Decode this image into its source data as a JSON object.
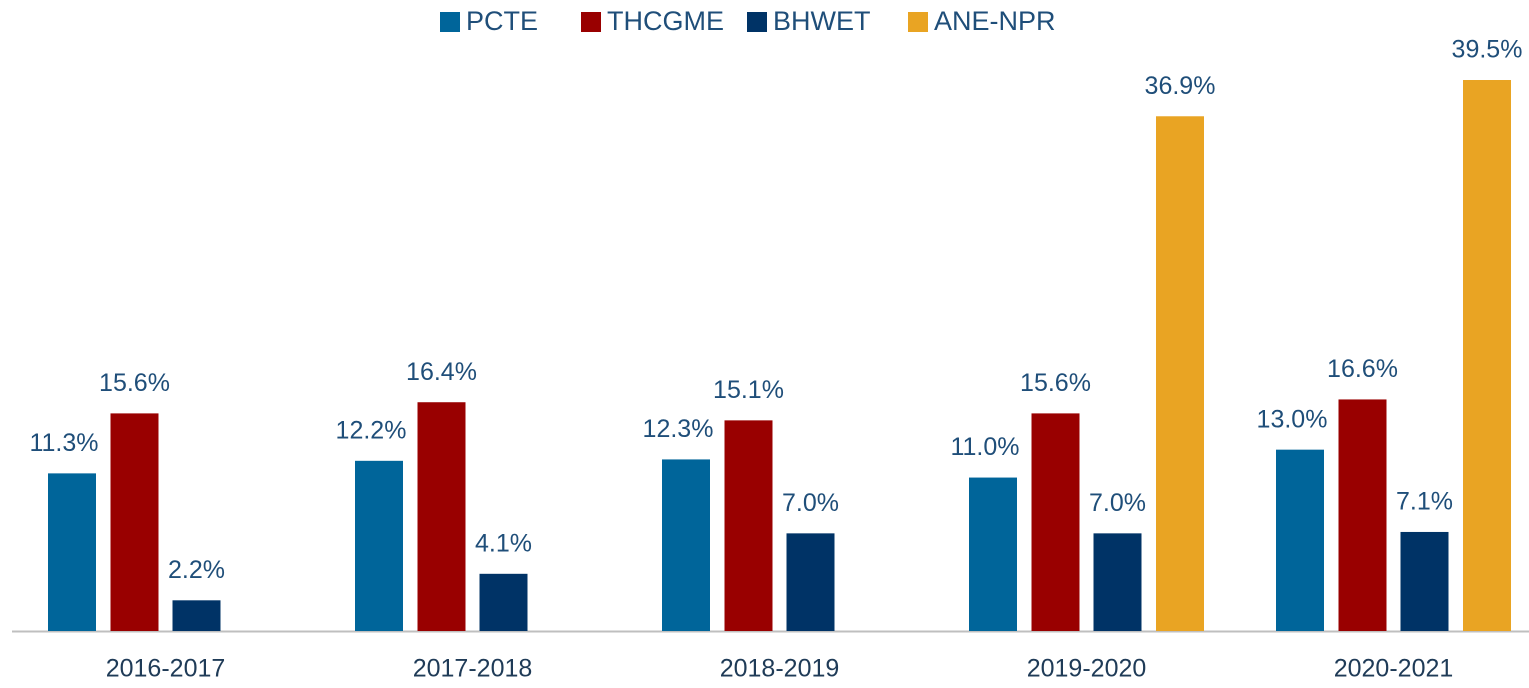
{
  "chart_data": {
    "type": "bar",
    "categories": [
      "2016-2017",
      "2017-2018",
      "2018-2019",
      "2019-2020",
      "2020-2021"
    ],
    "series": [
      {
        "name": "PCTE",
        "color": "#00659a",
        "values": [
          11.3,
          12.2,
          12.3,
          11.0,
          13.0
        ],
        "value_labels": [
          "11.3%",
          "12.2%",
          "12.3%",
          "11.0%",
          "13.0%"
        ]
      },
      {
        "name": "THCGME",
        "color": "#990000",
        "values": [
          15.6,
          16.4,
          15.1,
          15.6,
          16.6
        ],
        "value_labels": [
          "15.6%",
          "16.4%",
          "15.1%",
          "15.6%",
          "16.6%"
        ]
      },
      {
        "name": "BHWET",
        "color": "#003366",
        "values": [
          2.2,
          4.1,
          7.0,
          7.0,
          7.1
        ],
        "value_labels": [
          "2.2%",
          "4.1%",
          "7.0%",
          "7.0%",
          "7.1%"
        ]
      },
      {
        "name": "ANE-NPR",
        "color": "#e9a423",
        "values": [
          null,
          null,
          null,
          36.9,
          39.5
        ],
        "value_labels": [
          null,
          null,
          null,
          "36.9%",
          "39.5%"
        ]
      }
    ],
    "legend": "top"
  }
}
